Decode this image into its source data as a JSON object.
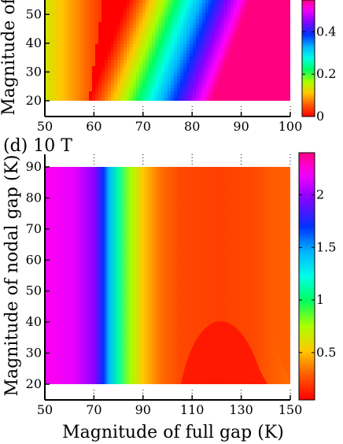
{
  "colors": {
    "scale": [
      "#ff0000",
      "#ff5a00",
      "#ffc800",
      "#a8ff00",
      "#00ff60",
      "#00ffe6",
      "#00b4ff",
      "#0032ff",
      "#8c00ff",
      "#ff00ff",
      "#ff0080"
    ]
  },
  "chart_data": [
    {
      "type": "heatmap",
      "panel_label": "",
      "ylabel": "Magnitude of",
      "xlabel": "",
      "x_ticks": [
        50,
        60,
        70,
        80,
        90,
        100
      ],
      "x_tick_labels": [
        "50",
        "60",
        "70",
        "80",
        "90",
        "100"
      ],
      "y_ticks": [
        20,
        30,
        40,
        50
      ],
      "y_tick_labels": [
        "20",
        "30",
        "40",
        "50"
      ],
      "xlim": [
        50,
        100
      ],
      "ylim": [
        20,
        55
      ],
      "colorbar": {
        "ticks": [
          0,
          0.2,
          0.4
        ],
        "tick_labels": [
          "0",
          "0.2",
          "0.4"
        ],
        "range": [
          0,
          0.55
        ]
      },
      "field_description_values": {
        "min_ridge_x": [
          60,
          61,
          62,
          62
        ],
        "min_ridge_y": [
          20,
          35,
          45,
          55
        ],
        "peak_value": 0.55
      }
    },
    {
      "type": "heatmap",
      "panel_label": "(d) 10 T",
      "ylabel": "Magnitude of nodal gap (K)",
      "xlabel": "Magnitude of full gap (K)",
      "x_ticks": [
        50,
        70,
        90,
        110,
        130,
        150
      ],
      "x_tick_labels": [
        "50",
        "70",
        "90",
        "110",
        "130",
        "150"
      ],
      "y_ticks": [
        20,
        30,
        40,
        50,
        60,
        70,
        80,
        90
      ],
      "y_tick_labels": [
        "20",
        "30",
        "40",
        "50",
        "60",
        "70",
        "80",
        "90"
      ],
      "xlim": [
        50,
        150
      ],
      "ylim": [
        20,
        90
      ],
      "colorbar": {
        "ticks": [
          0.5,
          1,
          1.5,
          2
        ],
        "tick_labels": [
          "0.5",
          "1",
          "1.5",
          "2"
        ],
        "range": [
          0.05,
          2.4
        ]
      },
      "field_description_values": {
        "blue_band_x": 75,
        "min_region_center": [
          123,
          25
        ],
        "peak_value": 2.35
      }
    }
  ]
}
